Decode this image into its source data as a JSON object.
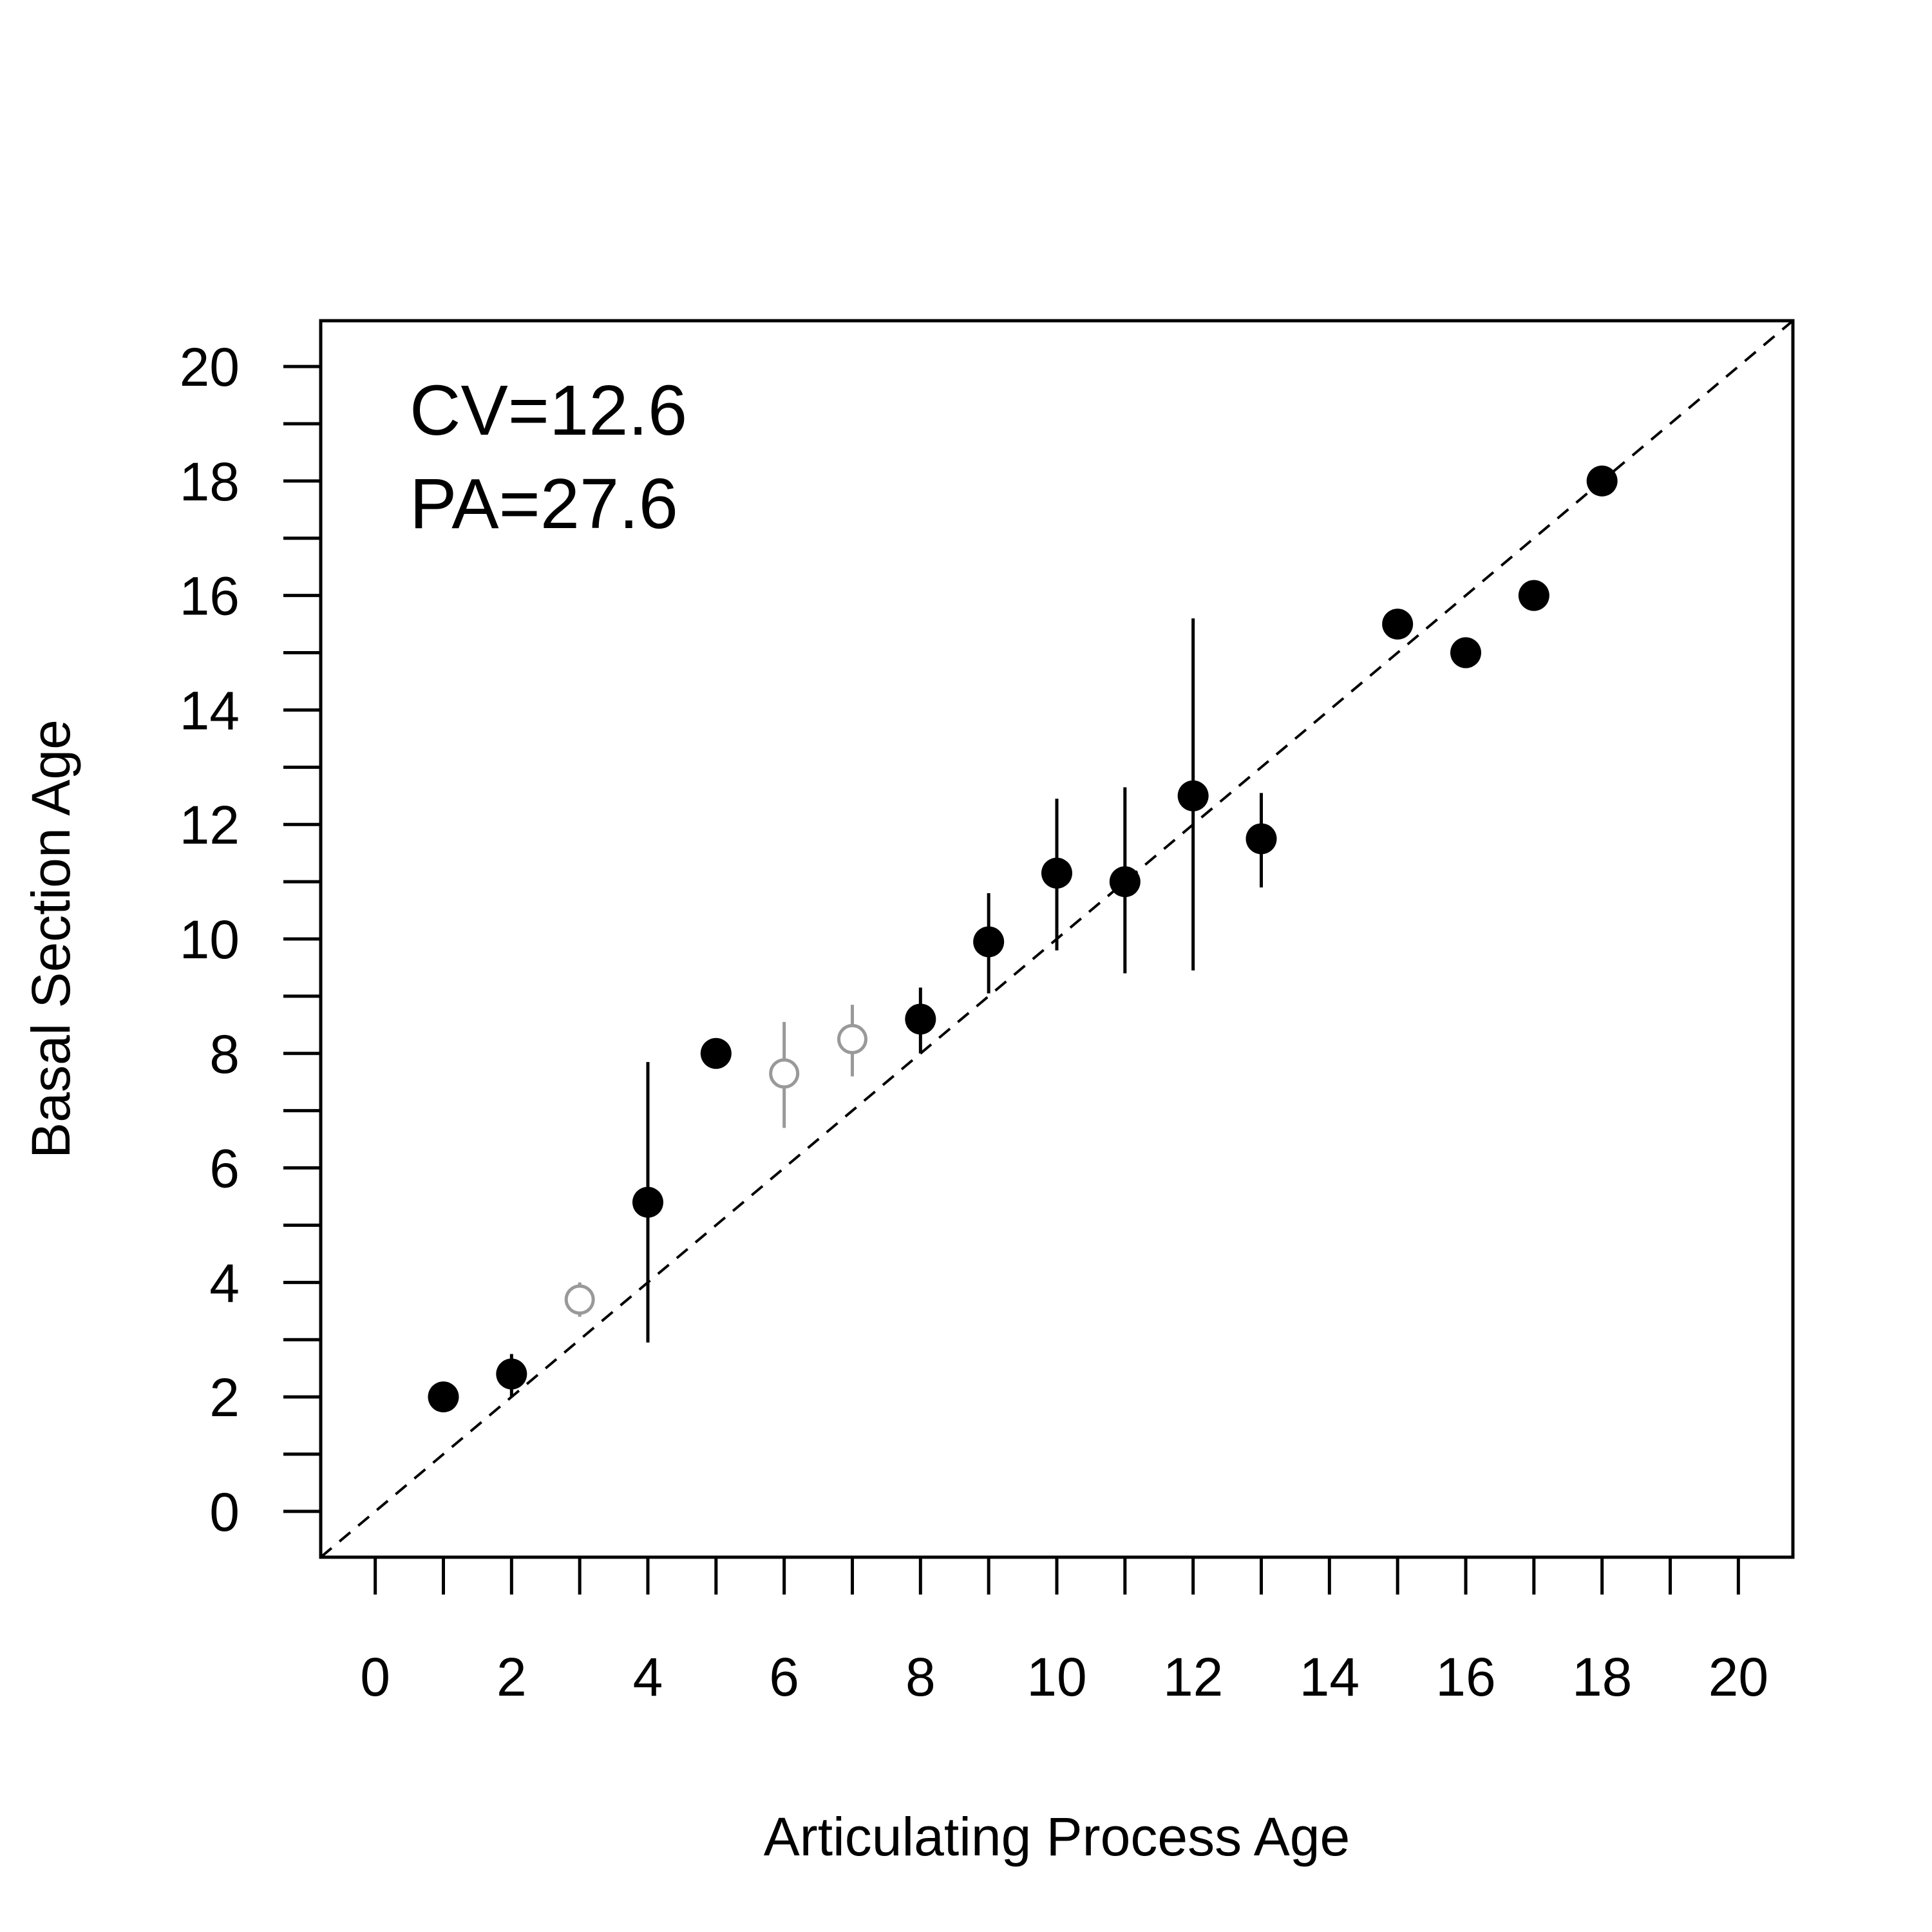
{
  "chart_data": {
    "type": "scatter",
    "xlabel": "Articulating Process Age",
    "ylabel": "Basal Section Age",
    "xlim": [
      -0.8,
      20.8
    ],
    "ylim": [
      -0.8,
      20.8
    ],
    "xticks": [
      0,
      1,
      2,
      3,
      4,
      5,
      6,
      7,
      8,
      9,
      10,
      11,
      12,
      13,
      14,
      15,
      16,
      17,
      18,
      19,
      20
    ],
    "xtick_labels": [
      "0",
      "2",
      "4",
      "6",
      "8",
      "10",
      "12",
      "14",
      "16",
      "18",
      "20"
    ],
    "yticks": [
      0,
      1,
      2,
      3,
      4,
      5,
      6,
      7,
      8,
      9,
      10,
      11,
      12,
      13,
      14,
      15,
      16,
      17,
      18,
      19,
      20
    ],
    "ytick_labels": [
      "0",
      "2",
      "4",
      "6",
      "8",
      "10",
      "12",
      "14",
      "16",
      "18",
      "20"
    ],
    "grid": false,
    "reference_line": {
      "style": "dashed",
      "slope": 1,
      "intercept": 0
    },
    "annotations": [
      "CV=12.6",
      "PA=27.6"
    ],
    "colors": {
      "filled": "#000000",
      "open": "#999999",
      "reference": "#000000"
    },
    "points": [
      {
        "x": 1,
        "y": 2.0,
        "low": 2.0,
        "high": 2.0,
        "style": "filled"
      },
      {
        "x": 2,
        "y": 2.4,
        "low": 2.0,
        "high": 2.75,
        "style": "filled"
      },
      {
        "x": 3,
        "y": 3.7,
        "low": 3.4,
        "high": 4.0,
        "style": "open"
      },
      {
        "x": 4,
        "y": 5.4,
        "low": 2.95,
        "high": 7.85,
        "style": "filled"
      },
      {
        "x": 5,
        "y": 8.0,
        "low": 8.0,
        "high": 8.0,
        "style": "filled"
      },
      {
        "x": 6,
        "y": 7.65,
        "low": 6.7,
        "high": 8.55,
        "style": "open"
      },
      {
        "x": 7,
        "y": 8.25,
        "low": 7.6,
        "high": 8.85,
        "style": "open"
      },
      {
        "x": 8,
        "y": 8.6,
        "low": 8.0,
        "high": 9.15,
        "style": "filled"
      },
      {
        "x": 9,
        "y": 9.95,
        "low": 9.05,
        "high": 10.8,
        "style": "filled"
      },
      {
        "x": 10,
        "y": 11.15,
        "low": 9.8,
        "high": 12.45,
        "style": "filled"
      },
      {
        "x": 11,
        "y": 11.0,
        "low": 9.4,
        "high": 12.65,
        "style": "filled"
      },
      {
        "x": 12,
        "y": 12.5,
        "low": 9.45,
        "high": 15.6,
        "style": "filled"
      },
      {
        "x": 13,
        "y": 11.75,
        "low": 10.9,
        "high": 12.55,
        "style": "filled"
      },
      {
        "x": 15,
        "y": 15.5,
        "low": 15.5,
        "high": 15.5,
        "style": "filled"
      },
      {
        "x": 16,
        "y": 15.0,
        "low": 15.0,
        "high": 15.0,
        "style": "filled"
      },
      {
        "x": 17,
        "y": 16.0,
        "low": 16.0,
        "high": 16.0,
        "style": "filled"
      },
      {
        "x": 18,
        "y": 18.0,
        "low": 18.0,
        "high": 18.0,
        "style": "filled"
      }
    ]
  }
}
